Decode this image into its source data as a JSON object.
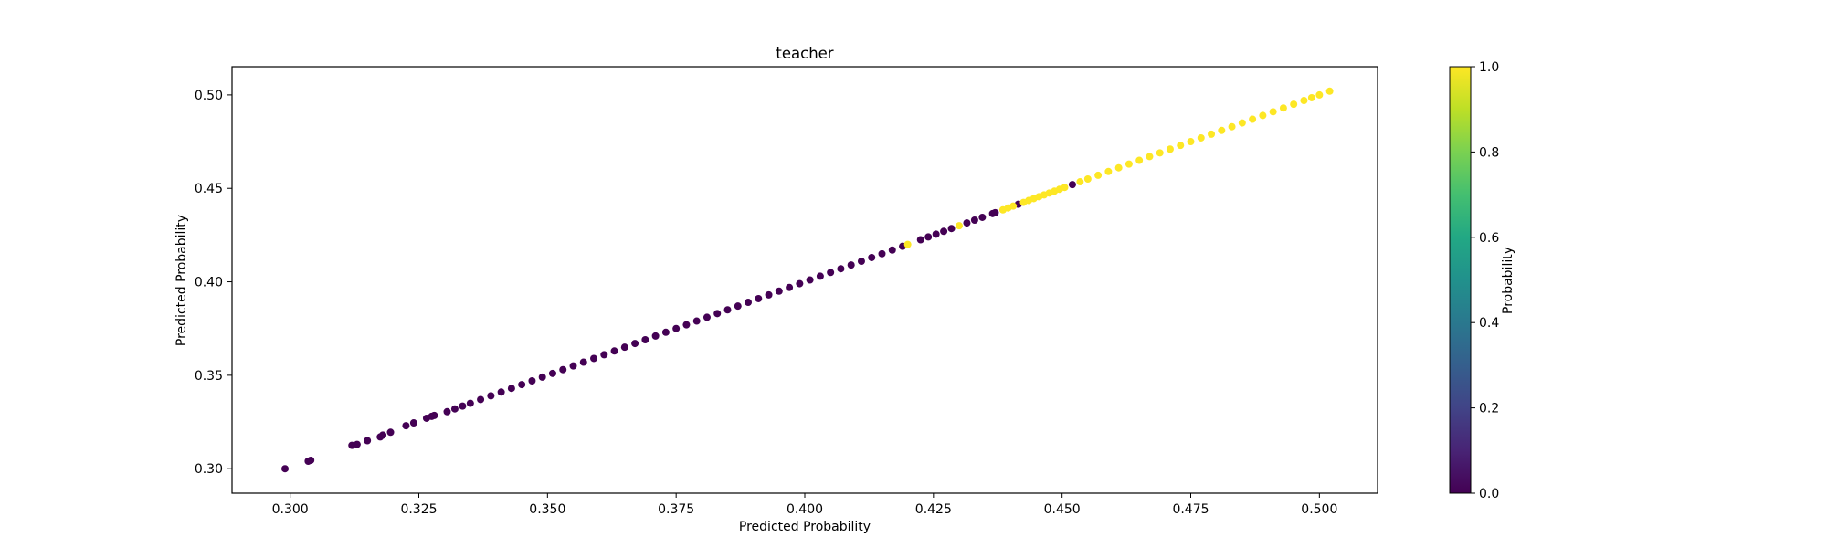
{
  "chart_data": {
    "type": "scatter",
    "title": "teacher",
    "xlabel": "Predicted Probability",
    "ylabel": "Predicted Probability",
    "xlim": [
      0.2887,
      0.5113
    ],
    "ylim": [
      0.2869,
      0.5151
    ],
    "x_ticks": [
      "0.300",
      "0.325",
      "0.350",
      "0.375",
      "0.400",
      "0.425",
      "0.450",
      "0.475",
      "0.500"
    ],
    "y_ticks": [
      "0.30",
      "0.35",
      "0.40",
      "0.45",
      "0.50"
    ],
    "grid": false,
    "colormap": "viridis",
    "colors": {
      "low": "#440154",
      "high": "#fde725"
    },
    "colorbar": {
      "label": "Probability",
      "range": [
        0.0,
        1.0
      ],
      "ticks": [
        "0.0",
        "0.2",
        "0.4",
        "0.6",
        "0.8",
        "1.0"
      ]
    },
    "series": [
      {
        "class": 0,
        "color": "#440154",
        "points": [
          [
            0.299,
            0.3
          ],
          [
            0.3035,
            0.304
          ],
          [
            0.304,
            0.3045
          ],
          [
            0.312,
            0.3125
          ],
          [
            0.313,
            0.313
          ],
          [
            0.315,
            0.315
          ],
          [
            0.3175,
            0.317
          ],
          [
            0.318,
            0.318
          ],
          [
            0.3195,
            0.3195
          ],
          [
            0.3225,
            0.323
          ],
          [
            0.324,
            0.3245
          ],
          [
            0.3265,
            0.327
          ],
          [
            0.3275,
            0.328
          ],
          [
            0.328,
            0.3285
          ],
          [
            0.3305,
            0.3305
          ],
          [
            0.332,
            0.332
          ],
          [
            0.3335,
            0.3335
          ],
          [
            0.335,
            0.335
          ],
          [
            0.337,
            0.337
          ],
          [
            0.339,
            0.339
          ],
          [
            0.341,
            0.341
          ],
          [
            0.343,
            0.343
          ],
          [
            0.345,
            0.345
          ],
          [
            0.347,
            0.347
          ],
          [
            0.349,
            0.349
          ],
          [
            0.351,
            0.351
          ],
          [
            0.353,
            0.353
          ],
          [
            0.355,
            0.355
          ],
          [
            0.357,
            0.357
          ],
          [
            0.359,
            0.359
          ],
          [
            0.361,
            0.361
          ],
          [
            0.363,
            0.363
          ],
          [
            0.365,
            0.365
          ],
          [
            0.367,
            0.367
          ],
          [
            0.369,
            0.369
          ],
          [
            0.371,
            0.371
          ],
          [
            0.373,
            0.373
          ],
          [
            0.375,
            0.375
          ],
          [
            0.377,
            0.377
          ],
          [
            0.379,
            0.379
          ],
          [
            0.381,
            0.381
          ],
          [
            0.383,
            0.383
          ],
          [
            0.385,
            0.385
          ],
          [
            0.387,
            0.387
          ],
          [
            0.389,
            0.389
          ],
          [
            0.391,
            0.391
          ],
          [
            0.393,
            0.393
          ],
          [
            0.395,
            0.395
          ],
          [
            0.397,
            0.397
          ],
          [
            0.399,
            0.399
          ],
          [
            0.401,
            0.401
          ],
          [
            0.403,
            0.403
          ],
          [
            0.405,
            0.405
          ],
          [
            0.407,
            0.407
          ],
          [
            0.409,
            0.409
          ],
          [
            0.411,
            0.411
          ],
          [
            0.413,
            0.413
          ],
          [
            0.415,
            0.415
          ],
          [
            0.417,
            0.417
          ],
          [
            0.419,
            0.419
          ],
          [
            0.4225,
            0.4225
          ],
          [
            0.424,
            0.424
          ],
          [
            0.4255,
            0.4255
          ],
          [
            0.427,
            0.427
          ],
          [
            0.4285,
            0.4285
          ],
          [
            0.4315,
            0.4315
          ],
          [
            0.433,
            0.433
          ],
          [
            0.4345,
            0.4345
          ],
          [
            0.4365,
            0.4365
          ],
          [
            0.437,
            0.437
          ],
          [
            0.4415,
            0.4415
          ],
          [
            0.452,
            0.452
          ]
        ]
      },
      {
        "class": 1,
        "color": "#fde725",
        "points": [
          [
            0.42,
            0.42
          ],
          [
            0.43,
            0.43
          ],
          [
            0.4385,
            0.4385
          ],
          [
            0.4395,
            0.4395
          ],
          [
            0.4405,
            0.4405
          ],
          [
            0.4425,
            0.4425
          ],
          [
            0.4435,
            0.4435
          ],
          [
            0.4445,
            0.4445
          ],
          [
            0.4455,
            0.4455
          ],
          [
            0.4465,
            0.4465
          ],
          [
            0.4475,
            0.4475
          ],
          [
            0.4485,
            0.4485
          ],
          [
            0.4495,
            0.4495
          ],
          [
            0.4505,
            0.4505
          ],
          [
            0.4535,
            0.4535
          ],
          [
            0.455,
            0.455
          ],
          [
            0.457,
            0.457
          ],
          [
            0.459,
            0.459
          ],
          [
            0.461,
            0.461
          ],
          [
            0.463,
            0.463
          ],
          [
            0.465,
            0.465
          ],
          [
            0.467,
            0.467
          ],
          [
            0.469,
            0.469
          ],
          [
            0.471,
            0.471
          ],
          [
            0.473,
            0.473
          ],
          [
            0.475,
            0.475
          ],
          [
            0.477,
            0.477
          ],
          [
            0.479,
            0.479
          ],
          [
            0.481,
            0.481
          ],
          [
            0.483,
            0.483
          ],
          [
            0.485,
            0.485
          ],
          [
            0.487,
            0.487
          ],
          [
            0.489,
            0.489
          ],
          [
            0.491,
            0.491
          ],
          [
            0.493,
            0.493
          ],
          [
            0.495,
            0.495
          ],
          [
            0.497,
            0.497
          ],
          [
            0.4985,
            0.4985
          ],
          [
            0.5,
            0.5
          ],
          [
            0.502,
            0.502
          ]
        ]
      }
    ]
  }
}
